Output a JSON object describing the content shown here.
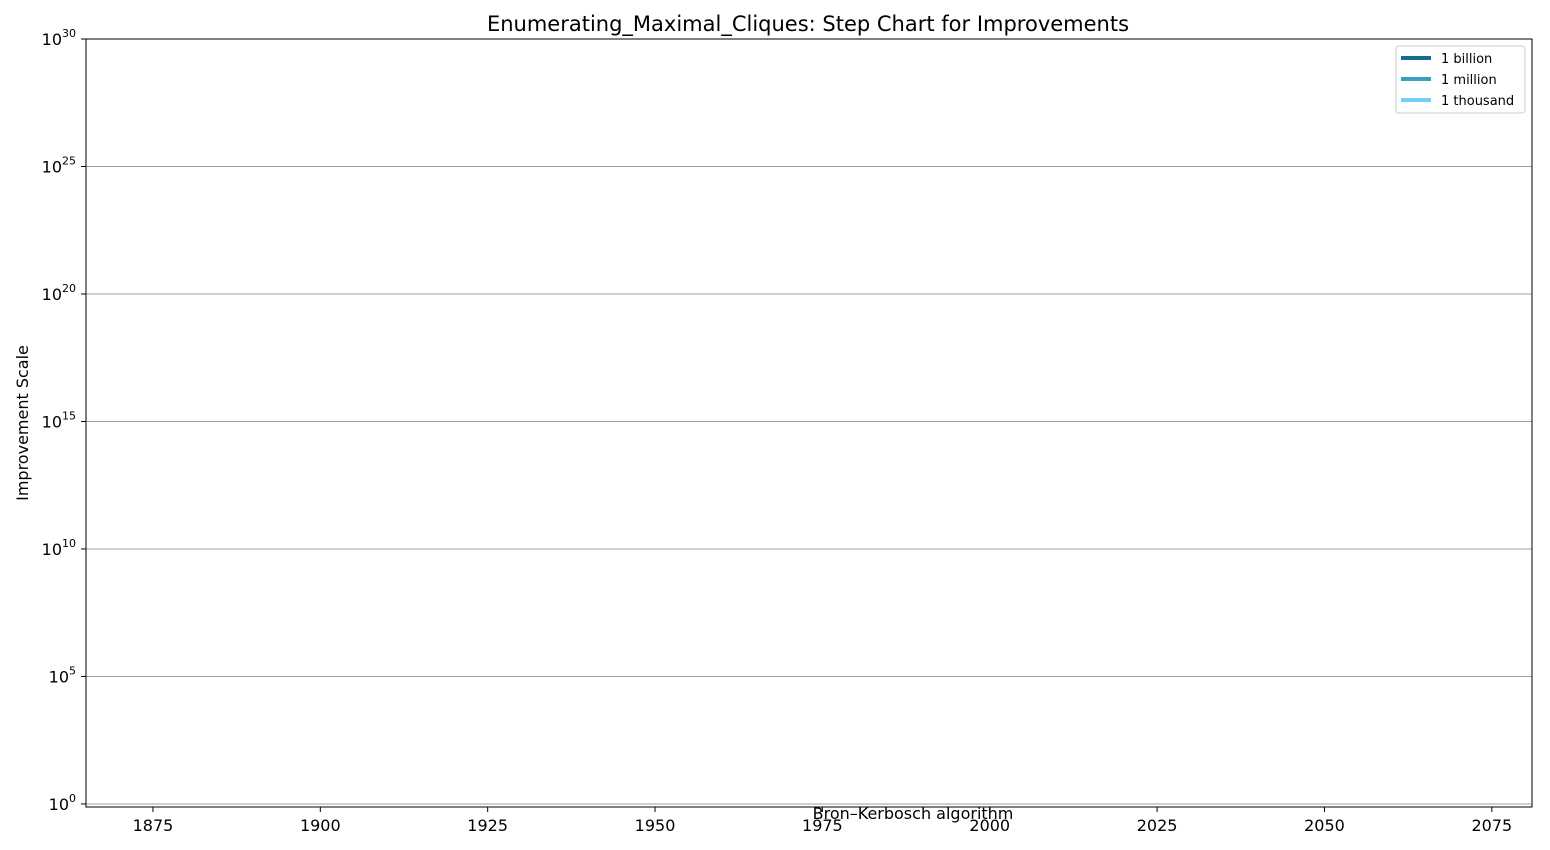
{
  "chart_data": {
    "type": "line",
    "title": "Enumerating_Maximal_Cliques: Step Chart for Improvements",
    "xlabel": "",
    "ylabel": "Improvement Scale",
    "xlim": [
      1865,
      2081
    ],
    "ylim": [
      1,
      1e+30
    ],
    "yscale": "log",
    "xticks": [
      1875,
      1900,
      1925,
      1950,
      1975,
      2000,
      2025,
      2050,
      2075
    ],
    "yticks": [
      {
        "exp": 0,
        "base": "10",
        "power": "0"
      },
      {
        "exp": 5,
        "base": "10",
        "power": "5"
      },
      {
        "exp": 10,
        "base": "10",
        "power": "10"
      },
      {
        "exp": 15,
        "base": "10",
        "power": "15"
      },
      {
        "exp": 20,
        "base": "10",
        "power": "20"
      },
      {
        "exp": 25,
        "base": "10",
        "power": "25"
      },
      {
        "exp": 30,
        "base": "10",
        "power": "30"
      }
    ],
    "grid": "y-major",
    "legend_position": "top-right",
    "series": [
      {
        "name": "1 billion",
        "color": "#136e8e",
        "points": []
      },
      {
        "name": "1 million",
        "color": "#3b9fbf",
        "points": []
      },
      {
        "name": "1 thousand",
        "color": "#72d0f5",
        "points": []
      }
    ],
    "annotations": [
      {
        "text": "Bron–Kerbosch algorithm",
        "x": 1987
      }
    ]
  }
}
